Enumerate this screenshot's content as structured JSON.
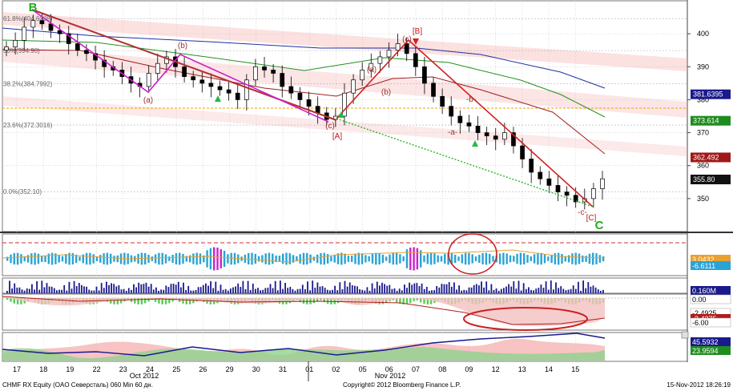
{
  "chart_data": {
    "type": "candlestick",
    "main": {
      "ylim": [
        340,
        410
      ],
      "yticks": [
        350,
        360,
        370,
        380,
        390,
        400
      ],
      "price_boxes": [
        {
          "value": 381.6395,
          "label": "381.6395",
          "color": "#1a1a8c"
        },
        {
          "value": 373.614,
          "label": "373.614",
          "color": "#1f8c1f"
        },
        {
          "value": 362.492,
          "label": "362.492",
          "color": "#a01818"
        },
        {
          "value": 355.8,
          "label": "355.80",
          "color": "#111111"
        }
      ],
      "fib_levels": [
        {
          "label": "61.8%(404.6008)",
          "value": 404.6
        },
        {
          "label": "50%(394.90)",
          "value": 394.9
        },
        {
          "label": "38.2%(384.7992)",
          "value": 384.8
        },
        {
          "label": "23.6%(372.3016)",
          "value": 372.3
        },
        {
          "label": "0.0%(352.10)",
          "value": 352.1
        }
      ],
      "close": [
        396,
        398,
        402,
        404,
        403,
        401,
        400,
        397,
        395,
        394,
        392,
        390,
        389,
        387,
        385,
        384,
        388,
        391,
        393,
        390,
        387,
        386,
        385,
        384,
        383,
        382,
        380,
        386,
        390,
        389,
        388,
        384,
        382,
        380,
        378,
        376,
        374,
        375,
        382,
        386,
        389,
        391,
        393,
        395,
        397,
        394,
        390,
        385,
        381,
        378,
        375,
        373,
        372,
        370,
        369,
        368,
        370,
        366,
        362,
        358,
        356,
        354,
        352,
        351,
        349,
        350,
        353,
        356
      ],
      "waves": [
        {
          "label": "B",
          "color": "#22aa22"
        },
        {
          "label": "(a)",
          "color": "#a03030"
        },
        {
          "label": "(b)",
          "color": "#a03030"
        },
        {
          "label": "(c)",
          "color": "#a03030"
        },
        {
          "label": "[A]",
          "color": "#c01818"
        },
        {
          "label": "(a)",
          "color": "#a03030"
        },
        {
          "label": "(b)",
          "color": "#a03030"
        },
        {
          "label": "(c)",
          "color": "#a03030"
        },
        {
          "label": "[B]",
          "color": "#c01818"
        },
        {
          "label": "-a-",
          "color": "#a03030"
        },
        {
          "label": "-b-",
          "color": "#a03030"
        },
        {
          "label": "-c-",
          "color": "#a03030"
        },
        {
          "label": "[C]",
          "color": "#c01818"
        },
        {
          "label": "C",
          "color": "#22aa22"
        }
      ]
    },
    "indicators": [
      {
        "name": "momentum",
        "labels": [
          {
            "text": "3.0432",
            "color": "#e8a030"
          },
          {
            "text": "-6.6111",
            "color": "#29a3d6"
          }
        ]
      },
      {
        "name": "volume",
        "labels": [
          {
            "text": "0.160M",
            "color": "#1a1a8c"
          },
          {
            "text": "0.00",
            "color": "#ffffff"
          }
        ]
      },
      {
        "name": "macd",
        "labels": [
          {
            "text": "-2.4925",
            "color": "#ffffff"
          },
          {
            "text": "-3.4375",
            "color": "#b21c1c"
          },
          {
            "text": "-6.00",
            "color": "#ffffff"
          }
        ]
      },
      {
        "name": "dmi",
        "labels": [
          {
            "text": "45.5932",
            "color": "#1a1a8c"
          },
          {
            "text": "23.9594",
            "color": "#1f8c1f"
          }
        ]
      }
    ],
    "x_day_labels": [
      "17",
      "18",
      "19",
      "22",
      "23",
      "24",
      "25",
      "26",
      "29",
      "30",
      "31",
      "01",
      "02",
      "05",
      "06",
      "07",
      "08",
      "09",
      "12",
      "13",
      "14",
      "15"
    ],
    "x_month_labels": [
      "Oct 2012",
      "Nov 2012"
    ]
  },
  "footer": {
    "left": "CHMF RX Equity (OAO Северсталь) 060 Min 60 дн.",
    "center": "Copyright© 2012 Bloomberg Finance L.P.",
    "right": "15-Nov-2012 18:26:19"
  }
}
